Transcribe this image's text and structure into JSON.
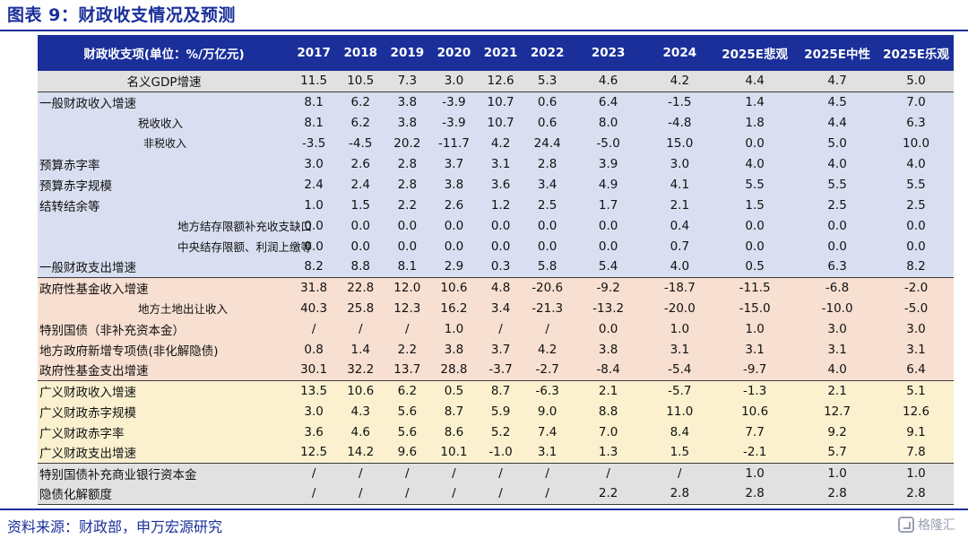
{
  "title": "图表 9：财政收支情况及预测",
  "source": "资料来源：财政部，申万宏源研究",
  "watermark": "格隆汇",
  "colors": {
    "accent": "#1a2f9a",
    "gray": "#e1e1e1",
    "blue": "#d9dff1",
    "pink": "#f7dfd1",
    "yellow": "#fbf1cf"
  },
  "table": {
    "header": [
      "财政收支项(单位：%/万亿元)",
      "2017",
      "2018",
      "2019",
      "2020",
      "2021",
      "2022",
      "2023",
      "2024",
      "2025E悲观",
      "2025E中性",
      "2025E乐观"
    ],
    "rows": [
      {
        "label": "名义GDP增速",
        "values": [
          "11.5",
          "10.5",
          "7.3",
          "3.0",
          "12.6",
          "5.3",
          "4.6",
          "4.2",
          "4.4",
          "4.7",
          "5.0"
        ]
      },
      {
        "label": "一般财政收入增速",
        "values": [
          "8.1",
          "6.2",
          "3.8",
          "-3.9",
          "10.7",
          "0.6",
          "6.4",
          "-1.5",
          "1.4",
          "4.5",
          "7.0"
        ]
      },
      {
        "label": "税收收入",
        "values": [
          "8.1",
          "6.2",
          "3.8",
          "-3.9",
          "10.7",
          "0.6",
          "8.0",
          "-4.8",
          "1.8",
          "4.4",
          "6.3"
        ]
      },
      {
        "label": "非税收入",
        "values": [
          "-3.5",
          "-4.5",
          "20.2",
          "-11.7",
          "4.2",
          "24.4",
          "-5.0",
          "15.0",
          "0.0",
          "5.0",
          "10.0"
        ]
      },
      {
        "label": "预算赤字率",
        "values": [
          "3.0",
          "2.6",
          "2.8",
          "3.7",
          "3.1",
          "2.8",
          "3.9",
          "3.0",
          "4.0",
          "4.0",
          "4.0"
        ]
      },
      {
        "label": "预算赤字规模",
        "values": [
          "2.4",
          "2.4",
          "2.8",
          "3.8",
          "3.6",
          "3.4",
          "4.9",
          "4.1",
          "5.5",
          "5.5",
          "5.5"
        ]
      },
      {
        "label": "结转结余等",
        "values": [
          "1.0",
          "1.5",
          "2.2",
          "2.6",
          "1.2",
          "2.5",
          "1.7",
          "2.1",
          "1.5",
          "2.5",
          "2.5"
        ]
      },
      {
        "label": "地方结存限额补充收支缺口",
        "values": [
          "0.0",
          "0.0",
          "0.0",
          "0.0",
          "0.0",
          "0.0",
          "0.0",
          "0.4",
          "0.0",
          "0.0",
          "0.0"
        ]
      },
      {
        "label": "中央结存限额、利润上缴等",
        "values": [
          "0.0",
          "0.0",
          "0.0",
          "0.0",
          "0.0",
          "0.0",
          "0.0",
          "0.7",
          "0.0",
          "0.0",
          "0.0"
        ]
      },
      {
        "label": "一般财政支出增速",
        "values": [
          "8.2",
          "8.8",
          "8.1",
          "2.9",
          "0.3",
          "5.8",
          "5.4",
          "4.0",
          "0.5",
          "6.3",
          "8.2"
        ]
      },
      {
        "label": "政府性基金收入增速",
        "values": [
          "31.8",
          "22.8",
          "12.0",
          "10.6",
          "4.8",
          "-20.6",
          "-9.2",
          "-18.7",
          "-11.5",
          "-6.8",
          "-2.0"
        ]
      },
      {
        "label": "地方土地出让收入",
        "values": [
          "40.3",
          "25.8",
          "12.3",
          "16.2",
          "3.4",
          "-21.3",
          "-13.2",
          "-20.0",
          "-15.0",
          "-10.0",
          "-5.0"
        ]
      },
      {
        "label": "特别国债（非补充资本金）",
        "values": [
          "/",
          "/",
          "/",
          "1.0",
          "/",
          "/",
          "0.0",
          "1.0",
          "1.0",
          "3.0",
          "3.0"
        ]
      },
      {
        "label": "地方政府新增专项债(非化解隐债)",
        "values": [
          "0.8",
          "1.4",
          "2.2",
          "3.8",
          "3.7",
          "4.2",
          "3.8",
          "3.1",
          "3.1",
          "3.1",
          "3.1"
        ]
      },
      {
        "label": "政府性基金支出增速",
        "values": [
          "30.1",
          "32.2",
          "13.7",
          "28.8",
          "-3.7",
          "-2.7",
          "-8.4",
          "-5.4",
          "-9.7",
          "4.0",
          "6.4"
        ]
      },
      {
        "label": "广义财政收入增速",
        "values": [
          "13.5",
          "10.6",
          "6.2",
          "0.5",
          "8.7",
          "-6.3",
          "2.1",
          "-5.7",
          "-1.3",
          "2.1",
          "5.1"
        ]
      },
      {
        "label": "广义财政赤字规模",
        "values": [
          "3.0",
          "4.3",
          "5.6",
          "8.7",
          "5.9",
          "9.0",
          "8.8",
          "11.0",
          "10.6",
          "12.7",
          "12.6"
        ]
      },
      {
        "label": "广义财政赤字率",
        "values": [
          "3.6",
          "4.6",
          "5.6",
          "8.6",
          "5.2",
          "7.4",
          "7.0",
          "8.4",
          "7.7",
          "9.2",
          "9.1"
        ]
      },
      {
        "label": "广义财政支出增速",
        "values": [
          "12.5",
          "14.2",
          "9.6",
          "10.1",
          "-1.0",
          "3.1",
          "1.3",
          "1.5",
          "-2.1",
          "5.7",
          "7.8"
        ]
      },
      {
        "label": "特别国债补充商业银行资本金",
        "values": [
          "/",
          "/",
          "/",
          "/",
          "/",
          "/",
          "/",
          "/",
          "1.0",
          "1.0",
          "1.0"
        ]
      },
      {
        "label": "隐债化解额度",
        "values": [
          "/",
          "/",
          "/",
          "/",
          "/",
          "/",
          "2.2",
          "2.8",
          "2.8",
          "2.8",
          "2.8"
        ]
      }
    ]
  }
}
